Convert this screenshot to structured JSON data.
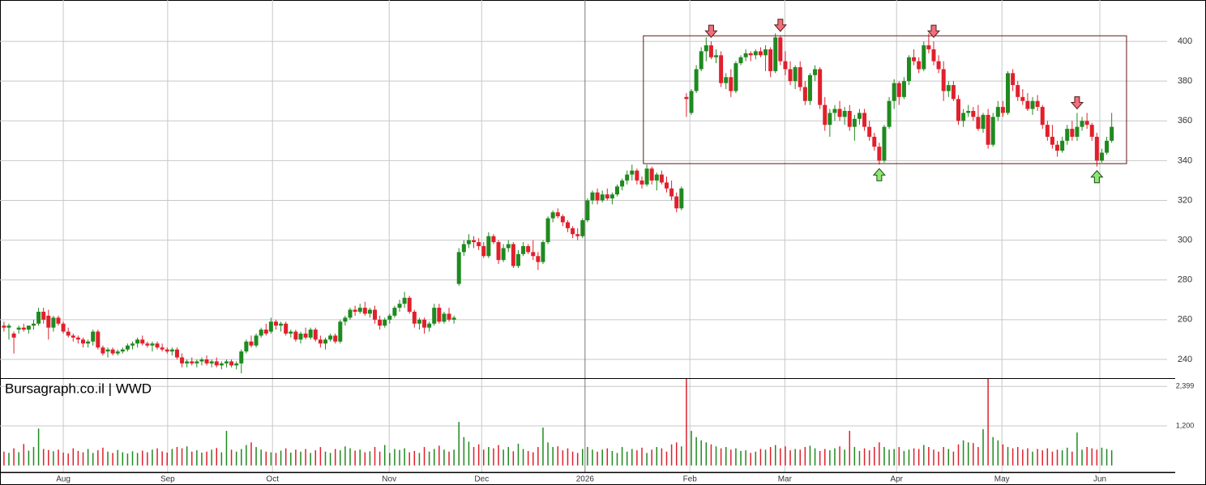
{
  "chart_data": {
    "type": "candlestick",
    "title": "Bursagraph.co.il | WWD",
    "up_color": "#1f8a1f",
    "down_color": "#e0202c",
    "xlim": [
      -0.8,
      235.2
    ],
    "xticks": [
      {
        "value": 12,
        "label": "Aug"
      },
      {
        "value": 33.1,
        "label": "Sep"
      },
      {
        "value": 54.3,
        "label": "Oct"
      },
      {
        "value": 77.9,
        "label": "Nov"
      },
      {
        "value": 96.6,
        "label": "Dec"
      },
      {
        "value": 117.5,
        "label": "2026"
      },
      {
        "value": 138.7,
        "label": "Feb"
      },
      {
        "value": 157.9,
        "label": "Mar"
      },
      {
        "value": 180.5,
        "label": "Apr"
      },
      {
        "value": 201.8,
        "label": "May"
      },
      {
        "value": 221.6,
        "label": "Jun"
      }
    ],
    "ylim": [
      230.6,
      420.8
    ],
    "yticks": [
      240,
      260,
      280,
      300,
      320,
      340,
      360,
      380,
      400
    ],
    "volume_ylim": [
      -200,
      2650
    ],
    "volume_yticks": [
      {
        "value": 1200,
        "label": "1,200"
      },
      {
        "value": 2399,
        "label": "2,399"
      }
    ],
    "grid": true,
    "candles": [
      [
        257,
        259,
        254,
        256
      ],
      [
        256,
        258,
        250,
        257
      ],
      [
        253,
        254,
        243,
        251
      ],
      [
        255,
        257,
        253,
        256
      ],
      [
        256,
        258,
        254,
        255
      ],
      [
        255,
        257,
        253,
        257
      ],
      [
        257,
        260,
        255,
        258
      ],
      [
        258,
        266,
        257,
        264
      ],
      [
        264,
        266,
        258,
        260
      ],
      [
        262,
        265,
        250,
        256
      ],
      [
        256,
        262,
        254,
        261
      ],
      [
        261,
        262,
        257,
        258
      ],
      [
        258,
        259,
        253,
        254
      ],
      [
        254,
        256,
        251,
        252
      ],
      [
        252,
        253,
        249,
        251
      ],
      [
        251,
        252,
        248,
        250
      ],
      [
        250,
        251,
        246,
        248
      ],
      [
        248,
        250,
        246,
        249
      ],
      [
        249,
        255,
        247,
        254
      ],
      [
        254,
        255,
        245,
        246
      ],
      [
        246,
        247,
        242,
        243
      ],
      [
        244,
        246,
        241,
        245
      ],
      [
        245,
        246,
        242,
        243
      ],
      [
        243,
        245,
        242,
        244
      ],
      [
        244,
        246,
        243,
        245
      ],
      [
        245,
        248,
        244,
        247
      ],
      [
        247,
        249,
        245,
        248
      ],
      [
        248,
        251,
        246,
        250
      ],
      [
        250,
        252,
        247,
        248
      ],
      [
        248,
        249,
        246,
        247
      ],
      [
        247,
        249,
        244,
        248
      ],
      [
        248,
        249,
        245,
        246
      ],
      [
        246,
        248,
        244,
        245
      ],
      [
        245,
        246,
        243,
        244
      ],
      [
        244,
        246,
        242,
        245
      ],
      [
        245,
        246,
        240,
        241
      ],
      [
        241,
        243,
        236,
        238
      ],
      [
        238,
        240,
        236,
        239
      ],
      [
        239,
        241,
        237,
        238
      ],
      [
        238,
        240,
        236,
        239
      ],
      [
        239,
        241,
        237,
        240
      ],
      [
        240,
        242,
        237,
        238
      ],
      [
        238,
        240,
        236,
        239
      ],
      [
        239,
        241,
        236,
        237
      ],
      [
        237,
        239,
        235,
        238
      ],
      [
        238,
        240,
        236,
        239
      ],
      [
        239,
        240,
        236,
        237
      ],
      [
        237,
        239,
        235,
        238
      ],
      [
        238,
        245,
        233,
        244
      ],
      [
        244,
        250,
        243,
        249
      ],
      [
        249,
        252,
        246,
        247
      ],
      [
        247,
        253,
        246,
        252
      ],
      [
        252,
        256,
        251,
        255
      ],
      [
        255,
        258,
        252,
        253
      ],
      [
        254,
        261,
        253,
        259
      ],
      [
        259,
        260,
        255,
        257
      ],
      [
        257,
        259,
        254,
        258
      ],
      [
        258,
        259,
        252,
        253
      ],
      [
        253,
        255,
        251,
        254
      ],
      [
        254,
        255,
        249,
        250
      ],
      [
        250,
        254,
        248,
        253
      ],
      [
        253,
        256,
        250,
        251
      ],
      [
        251,
        256,
        250,
        255
      ],
      [
        255,
        256,
        249,
        250
      ],
      [
        250,
        252,
        246,
        248
      ],
      [
        248,
        251,
        245,
        250
      ],
      [
        250,
        253,
        249,
        252
      ],
      [
        252,
        253,
        248,
        249
      ],
      [
        249,
        260,
        248,
        259
      ],
      [
        259,
        262,
        257,
        261
      ],
      [
        261,
        266,
        260,
        265
      ],
      [
        265,
        267,
        262,
        264
      ],
      [
        264,
        268,
        263,
        266
      ],
      [
        266,
        269,
        262,
        263
      ],
      [
        263,
        266,
        261,
        265
      ],
      [
        265,
        267,
        258,
        260
      ],
      [
        260,
        262,
        255,
        257
      ],
      [
        257,
        261,
        256,
        260
      ],
      [
        260,
        263,
        258,
        262
      ],
      [
        262,
        267,
        261,
        266
      ],
      [
        266,
        270,
        264,
        268
      ],
      [
        268,
        274,
        266,
        271
      ],
      [
        271,
        272,
        263,
        264
      ],
      [
        264,
        265,
        256,
        258
      ],
      [
        258,
        261,
        255,
        260
      ],
      [
        260,
        261,
        253,
        256
      ],
      [
        256,
        259,
        254,
        258
      ],
      [
        258,
        268,
        257,
        266
      ],
      [
        266,
        268,
        258,
        259
      ],
      [
        259,
        264,
        258,
        263
      ],
      [
        263,
        266,
        259,
        260
      ],
      [
        260,
        262,
        258,
        261
      ],
      [
        278,
        296,
        277,
        294
      ],
      [
        294,
        300,
        292,
        298
      ],
      [
        298,
        303,
        296,
        300
      ],
      [
        300,
        302,
        296,
        299
      ],
      [
        299,
        301,
        295,
        297
      ],
      [
        297,
        299,
        291,
        292
      ],
      [
        292,
        304,
        291,
        302
      ],
      [
        302,
        303,
        298,
        299
      ],
      [
        299,
        300,
        288,
        290
      ],
      [
        290,
        298,
        289,
        296
      ],
      [
        296,
        300,
        294,
        298
      ],
      [
        298,
        299,
        286,
        287
      ],
      [
        287,
        295,
        286,
        293
      ],
      [
        293,
        299,
        292,
        297
      ],
      [
        297,
        298,
        293,
        294
      ],
      [
        294,
        300,
        290,
        292
      ],
      [
        292,
        294,
        285,
        289
      ],
      [
        289,
        300,
        288,
        299
      ],
      [
        299,
        312,
        298,
        311
      ],
      [
        311,
        315,
        309,
        314
      ],
      [
        314,
        316,
        311,
        312
      ],
      [
        312,
        313,
        307,
        309
      ],
      [
        309,
        310,
        304,
        306
      ],
      [
        306,
        307,
        301,
        303
      ],
      [
        303,
        306,
        300,
        302
      ],
      [
        302,
        311,
        301,
        310
      ],
      [
        310,
        321,
        309,
        320
      ],
      [
        320,
        325,
        318,
        324
      ],
      [
        324,
        326,
        318,
        320
      ],
      [
        320,
        325,
        319,
        323
      ],
      [
        323,
        326,
        320,
        321
      ],
      [
        321,
        324,
        318,
        323
      ],
      [
        323,
        328,
        322,
        327
      ],
      [
        327,
        331,
        325,
        330
      ],
      [
        330,
        335,
        328,
        333
      ],
      [
        333,
        338,
        330,
        335
      ],
      [
        335,
        336,
        328,
        330
      ],
      [
        330,
        332,
        326,
        328
      ],
      [
        328,
        338,
        327,
        336
      ],
      [
        336,
        337,
        328,
        330
      ],
      [
        330,
        334,
        325,
        333
      ],
      [
        333,
        335,
        328,
        329
      ],
      [
        329,
        332,
        324,
        326
      ],
      [
        326,
        330,
        320,
        322
      ],
      [
        322,
        324,
        314,
        316
      ],
      [
        316,
        327,
        315,
        326
      ],
      [
        372,
        374,
        362,
        371
      ],
      [
        364,
        376,
        363,
        375
      ],
      [
        375,
        388,
        374,
        386
      ],
      [
        386,
        397,
        385,
        395
      ],
      [
        395,
        402,
        390,
        398
      ],
      [
        398,
        400,
        391,
        392
      ],
      [
        392,
        396,
        389,
        393
      ],
      [
        393,
        395,
        377,
        379
      ],
      [
        379,
        384,
        376,
        382
      ],
      [
        382,
        386,
        372,
        375
      ],
      [
        375,
        390,
        374,
        389
      ],
      [
        389,
        393,
        388,
        392
      ],
      [
        392,
        396,
        390,
        394
      ],
      [
        394,
        395,
        390,
        393
      ],
      [
        393,
        396,
        391,
        395
      ],
      [
        395,
        397,
        392,
        393
      ],
      [
        393,
        398,
        385,
        396
      ],
      [
        396,
        397,
        382,
        385
      ],
      [
        385,
        404,
        384,
        402
      ],
      [
        402,
        403,
        388,
        390
      ],
      [
        390,
        395,
        383,
        386
      ],
      [
        386,
        390,
        378,
        380
      ],
      [
        380,
        388,
        376,
        387
      ],
      [
        387,
        390,
        375,
        377
      ],
      [
        377,
        380,
        368,
        370
      ],
      [
        370,
        384,
        368,
        383
      ],
      [
        383,
        388,
        380,
        386
      ],
      [
        386,
        387,
        366,
        368
      ],
      [
        368,
        372,
        355,
        358
      ],
      [
        358,
        366,
        352,
        364
      ],
      [
        364,
        368,
        360,
        366
      ],
      [
        366,
        370,
        360,
        362
      ],
      [
        362,
        367,
        358,
        365
      ],
      [
        365,
        368,
        355,
        357
      ],
      [
        357,
        363,
        350,
        361
      ],
      [
        361,
        366,
        358,
        364
      ],
      [
        364,
        366,
        355,
        357
      ],
      [
        357,
        360,
        350,
        352
      ],
      [
        352,
        354,
        345,
        347
      ],
      [
        347,
        349,
        338,
        340
      ],
      [
        340,
        358,
        339,
        357
      ],
      [
        357,
        372,
        356,
        370
      ],
      [
        370,
        381,
        366,
        379
      ],
      [
        379,
        380,
        368,
        372
      ],
      [
        372,
        382,
        371,
        380
      ],
      [
        380,
        393,
        378,
        392
      ],
      [
        392,
        396,
        388,
        390
      ],
      [
        390,
        392,
        384,
        386
      ],
      [
        386,
        400,
        385,
        398
      ],
      [
        398,
        404,
        394,
        396
      ],
      [
        396,
        400,
        388,
        390
      ],
      [
        390,
        393,
        384,
        386
      ],
      [
        386,
        390,
        370,
        375
      ],
      [
        375,
        380,
        372,
        378
      ],
      [
        378,
        380,
        370,
        371
      ],
      [
        371,
        373,
        358,
        360
      ],
      [
        360,
        366,
        357,
        364
      ],
      [
        364,
        368,
        362,
        365
      ],
      [
        365,
        367,
        360,
        362
      ],
      [
        362,
        368,
        355,
        356
      ],
      [
        356,
        364,
        354,
        363
      ],
      [
        363,
        366,
        346,
        348
      ],
      [
        348,
        364,
        347,
        362
      ],
      [
        362,
        370,
        360,
        367
      ],
      [
        367,
        370,
        362,
        364
      ],
      [
        364,
        385,
        363,
        384
      ],
      [
        384,
        386,
        375,
        378
      ],
      [
        378,
        380,
        370,
        372
      ],
      [
        372,
        376,
        368,
        370
      ],
      [
        370,
        374,
        365,
        366
      ],
      [
        366,
        372,
        363,
        370
      ],
      [
        370,
        373,
        365,
        367
      ],
      [
        367,
        368,
        356,
        358
      ],
      [
        358,
        360,
        350,
        352
      ],
      [
        352,
        358,
        346,
        348
      ],
      [
        348,
        350,
        342,
        345
      ],
      [
        345,
        352,
        344,
        350
      ],
      [
        350,
        358,
        348,
        356
      ],
      [
        356,
        360,
        350,
        352
      ],
      [
        352,
        364,
        350,
        357
      ],
      [
        357,
        362,
        355,
        360
      ],
      [
        360,
        364,
        356,
        358
      ],
      [
        358,
        359,
        350,
        352
      ],
      [
        352,
        354,
        337,
        340
      ],
      [
        340,
        346,
        339,
        344
      ],
      [
        344,
        352,
        343,
        350
      ],
      [
        350,
        364,
        349,
        357
      ]
    ],
    "volume": [
      420,
      380,
      520,
      400,
      650,
      450,
      560,
      1120,
      500,
      470,
      430,
      480,
      390,
      360,
      520,
      440,
      400,
      500,
      380,
      460,
      540,
      420,
      380,
      470,
      400,
      360,
      430,
      380,
      450,
      400,
      480,
      520,
      430,
      390,
      500,
      560,
      520,
      580,
      420,
      460,
      390,
      420,
      480,
      530,
      400,
      1050,
      480,
      420,
      500,
      620,
      700,
      560,
      480,
      420,
      400,
      380,
      450,
      520,
      390,
      480,
      420,
      500,
      380,
      460,
      560,
      420,
      380,
      500,
      460,
      580,
      520,
      450,
      480,
      400,
      430,
      560,
      420,
      620,
      380,
      500,
      470,
      520,
      400,
      440,
      380,
      560,
      420,
      500,
      600,
      480,
      420,
      480,
      1320,
      860,
      720,
      560,
      640,
      480,
      560,
      520,
      620,
      480,
      560,
      430,
      660,
      500,
      440,
      400,
      560,
      1150,
      700,
      560,
      580,
      460,
      520,
      420,
      380,
      500,
      560,
      480,
      420,
      480,
      520,
      440,
      380,
      560,
      420,
      500,
      460,
      540,
      380,
      480,
      560,
      520,
      420,
      640,
      700,
      580,
      2650,
      1050,
      860,
      760,
      700,
      640,
      580,
      520,
      560,
      480,
      520,
      440,
      460,
      380,
      420,
      500,
      480,
      560,
      620,
      520,
      580,
      460,
      500,
      480,
      560,
      600,
      520,
      440,
      500,
      460,
      520,
      580,
      480,
      1050,
      560,
      440,
      520,
      460,
      560,
      700,
      560,
      480,
      500,
      560,
      440,
      480,
      520,
      500,
      620,
      560,
      480,
      420,
      560,
      500,
      420,
      640,
      760,
      700,
      680,
      560,
      1100,
      2650,
      860,
      760,
      640,
      560,
      520,
      560,
      480,
      520,
      420,
      500,
      460,
      520,
      420,
      480,
      460,
      540,
      420,
      1000,
      480,
      560,
      520,
      480,
      540,
      500,
      460
    ],
    "range_box": {
      "start": 129.3,
      "end": 227,
      "high": 402.8,
      "low": 338.5
    },
    "signals": [
      {
        "index": 143,
        "kind": "sell"
      },
      {
        "index": 157,
        "kind": "sell"
      },
      {
        "index": 188,
        "kind": "sell"
      },
      {
        "index": 217,
        "kind": "sell"
      },
      {
        "index": 177,
        "kind": "buy"
      },
      {
        "index": 221,
        "kind": "buy"
      }
    ]
  }
}
